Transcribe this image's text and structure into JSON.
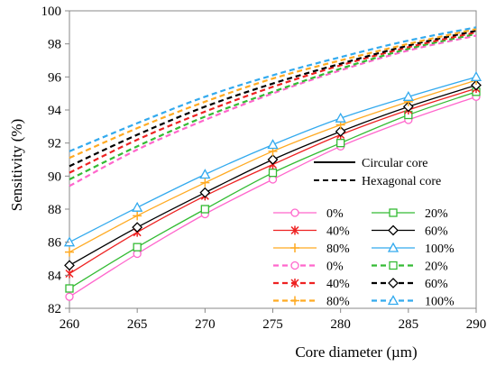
{
  "chart_data": {
    "type": "line",
    "x": [
      260,
      265,
      270,
      275,
      280,
      285,
      290
    ],
    "xlabel": "Core diameter (µm)",
    "ylabel": "Sensitivity (%)",
    "xlim": [
      260,
      290
    ],
    "ylim": [
      82,
      100
    ],
    "xticks": [
      "260",
      "265",
      "270",
      "275",
      "280",
      "285",
      "290"
    ],
    "yticks": [
      "82",
      "84",
      "86",
      "88",
      "90",
      "92",
      "94",
      "96",
      "98",
      "100"
    ],
    "grid": false,
    "legend_position": "bottom-right",
    "style_legend": [
      {
        "label": "Circular core",
        "dash": "solid"
      },
      {
        "label": "Hexagonal core",
        "dash": "dashed"
      }
    ],
    "series": [
      {
        "name": "0%",
        "group": "circular",
        "dash": "solid",
        "color": "#ff66cc",
        "marker": "circle",
        "values": [
          82.7,
          85.3,
          87.7,
          89.8,
          91.8,
          93.4,
          94.8
        ]
      },
      {
        "name": "20%",
        "group": "circular",
        "dash": "solid",
        "color": "#33bb33",
        "marker": "square",
        "values": [
          83.2,
          85.7,
          88.0,
          90.2,
          92.0,
          93.7,
          95.1
        ]
      },
      {
        "name": "40%",
        "group": "circular",
        "dash": "solid",
        "color": "#ee2222",
        "marker": "x-star",
        "values": [
          84.1,
          86.6,
          88.8,
          90.7,
          92.5,
          94.0,
          95.3
        ]
      },
      {
        "name": "60%",
        "group": "circular",
        "dash": "solid",
        "color": "#000000",
        "marker": "diamond",
        "values": [
          84.6,
          86.9,
          89.0,
          91.0,
          92.7,
          94.2,
          95.5
        ]
      },
      {
        "name": "80%",
        "group": "circular",
        "dash": "solid",
        "color": "#ffaa22",
        "marker": "plus",
        "values": [
          85.4,
          87.6,
          89.6,
          91.5,
          93.1,
          94.5,
          95.8
        ]
      },
      {
        "name": "100%",
        "group": "circular",
        "dash": "solid",
        "color": "#33aaee",
        "marker": "triangle",
        "values": [
          86.0,
          88.1,
          90.1,
          91.9,
          93.5,
          94.8,
          96.0
        ]
      },
      {
        "name": "0%",
        "group": "hexagonal",
        "dash": "dashed",
        "color": "#ff66cc",
        "marker": "circle",
        "values": [
          89.4,
          91.6,
          93.4,
          95.0,
          96.4,
          97.6,
          98.5
        ]
      },
      {
        "name": "20%",
        "group": "hexagonal",
        "dash": "dashed",
        "color": "#33bb33",
        "marker": "square",
        "values": [
          89.8,
          91.8,
          93.6,
          95.1,
          96.5,
          97.7,
          98.6
        ]
      },
      {
        "name": "40%",
        "group": "hexagonal",
        "dash": "dashed",
        "color": "#ee2222",
        "marker": "x-star",
        "values": [
          90.2,
          92.2,
          93.9,
          95.4,
          96.7,
          97.8,
          98.7
        ]
      },
      {
        "name": "60%",
        "group": "hexagonal",
        "dash": "dashed",
        "color": "#000000",
        "marker": "diamond",
        "values": [
          90.6,
          92.5,
          94.2,
          95.6,
          96.8,
          97.9,
          98.8
        ]
      },
      {
        "name": "80%",
        "group": "hexagonal",
        "dash": "dashed",
        "color": "#ffaa22",
        "marker": "plus",
        "values": [
          91.1,
          92.9,
          94.5,
          95.9,
          97.0,
          98.0,
          98.9
        ]
      },
      {
        "name": "100%",
        "group": "hexagonal",
        "dash": "dashed",
        "color": "#33aaee",
        "marker": "triangle",
        "values": [
          91.5,
          93.2,
          94.8,
          96.1,
          97.2,
          98.2,
          99.0
        ]
      }
    ]
  }
}
